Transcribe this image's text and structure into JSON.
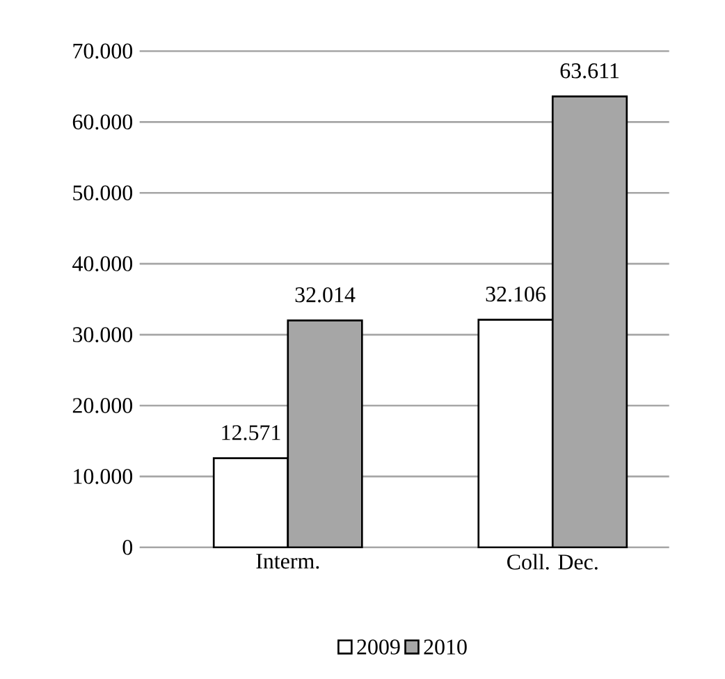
{
  "chart_data": {
    "type": "bar",
    "categories": [
      "Interm.",
      "Coll. Dec."
    ],
    "series": [
      {
        "name": "2009",
        "color": "#ffffff",
        "values": [
          12571,
          32106
        ],
        "value_labels": [
          "12.571",
          "32.106"
        ]
      },
      {
        "name": "2010",
        "color": "#a6a6a6",
        "values": [
          32014,
          63611
        ],
        "value_labels": [
          "32.014",
          "63.611"
        ]
      }
    ],
    "ylim": [
      0,
      70000
    ],
    "yticks": [
      {
        "value": 0,
        "label": "0"
      },
      {
        "value": 10000,
        "label": "10.000"
      },
      {
        "value": 20000,
        "label": "20.000"
      },
      {
        "value": 30000,
        "label": "30.000"
      },
      {
        "value": 40000,
        "label": "40.000"
      },
      {
        "value": 50000,
        "label": "50.000"
      },
      {
        "value": 60000,
        "label": "60.000"
      },
      {
        "value": 70000,
        "label": "70.000"
      }
    ],
    "grid": "y",
    "legend": "bottom"
  }
}
